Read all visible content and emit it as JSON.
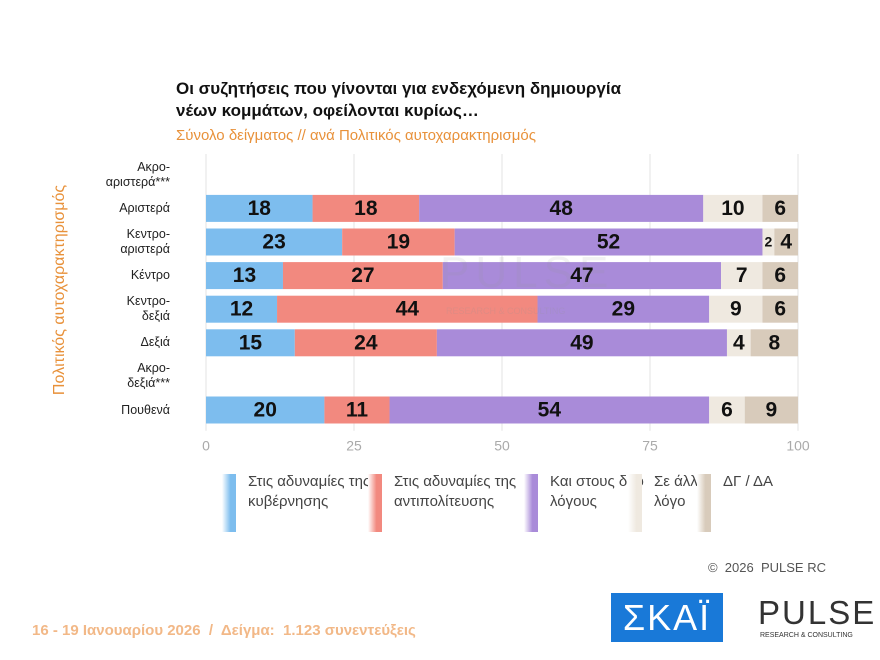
{
  "chart_data": {
    "type": "stacked-barh",
    "title": "Οι συζητήσεις που γίνονται για ενδεχόμενη δημιουργία\nνέων κομμάτων, οφείλονται κυρίως…",
    "subtitle": "Σύνολο δείγματος // ανά Πολιτικός αυτοχαρακτηρισμός",
    "y_label": "Πολιτικός αυτοχαρακτηρισμός",
    "categories": [
      "Ακρο-\nαριστερά***",
      "Αριστερά",
      "Κεντρο-\nαριστερά",
      "Κέντρο",
      "Κεντρο-\nδεξιά",
      "Δεξιά",
      "Ακρο-\nδεξιά***",
      "Πουθενά"
    ],
    "series": [
      {
        "name": "Στις αδυναμίες της κυβέρνησης",
        "color": "#7dbdee",
        "values": [
          null,
          18,
          23,
          13,
          12,
          15,
          null,
          20
        ]
      },
      {
        "name": "Στις αδυναμίες της αντιπολίτευσης",
        "color": "#f2897f",
        "values": [
          null,
          18,
          19,
          27,
          44,
          24,
          null,
          11
        ]
      },
      {
        "name": "Και στους δύο λόγους",
        "color": "#a98bd9",
        "values": [
          null,
          48,
          52,
          47,
          29,
          49,
          null,
          54
        ]
      },
      {
        "name": "Σε άλλο λόγο",
        "color": "#efe9e0",
        "values": [
          null,
          10,
          2,
          7,
          9,
          4,
          null,
          6
        ]
      },
      {
        "name": "ΔΓ / ΔΑ",
        "color": "#d8cbbb",
        "values": [
          null,
          6,
          4,
          6,
          6,
          8,
          null,
          9
        ]
      }
    ],
    "xlim": [
      0,
      100
    ],
    "xticks": [
      0,
      25,
      50,
      75,
      100
    ],
    "grid": true
  },
  "footer": "16 - 19 Ιανουαρίου 2026  /  Δείγμα:  1.123 συνεντεύξεις",
  "copyright": "©  2026  PULSE RC",
  "logos": {
    "skai": "ΣΚΑΪ",
    "pulse": "PULSE",
    "pulse_tagline": "RESEARCH & CONSULTING"
  }
}
